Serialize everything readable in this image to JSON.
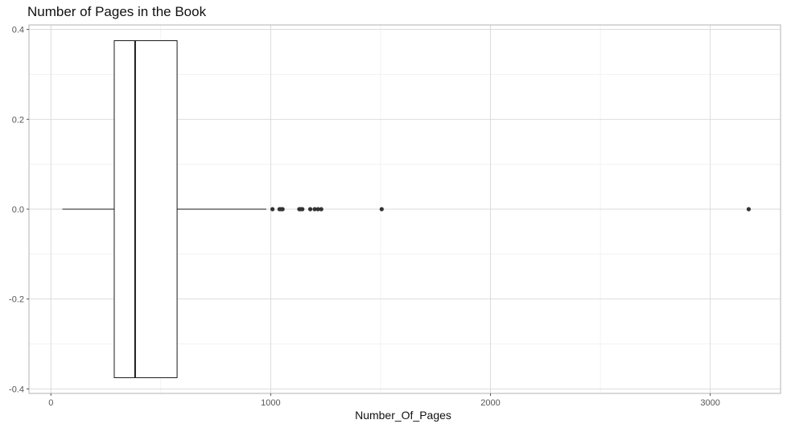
{
  "chart_data": {
    "type": "boxplot",
    "title": "Number of Pages in the Book",
    "xlabel": "Number_Of_Pages",
    "ylabel": "",
    "orientation": "horizontal",
    "xlim": [
      -100,
      3320
    ],
    "ylim": [
      -0.41,
      0.41
    ],
    "x_ticks": [
      0,
      1000,
      2000,
      3000
    ],
    "x_minor_ticks": [
      500,
      1500,
      2500
    ],
    "y_ticks": [
      0.4,
      0.2,
      0.0,
      -0.2,
      -0.4
    ],
    "y_tick_labels": [
      "0.4",
      "0.2",
      "0.0",
      "-0.2",
      "-0.4"
    ],
    "y_minor_ticks": [
      0.3,
      0.1,
      -0.1,
      -0.3
    ],
    "box": {
      "whisker_low": 52,
      "q1": 288,
      "median": 383,
      "q3": 574,
      "whisker_high": 980,
      "width": 0.75
    },
    "outliers": [
      1008,
      1040,
      1047,
      1054,
      1130,
      1137,
      1144,
      1180,
      1200,
      1215,
      1230,
      1505,
      3175
    ],
    "grid": true,
    "theme": "light"
  }
}
